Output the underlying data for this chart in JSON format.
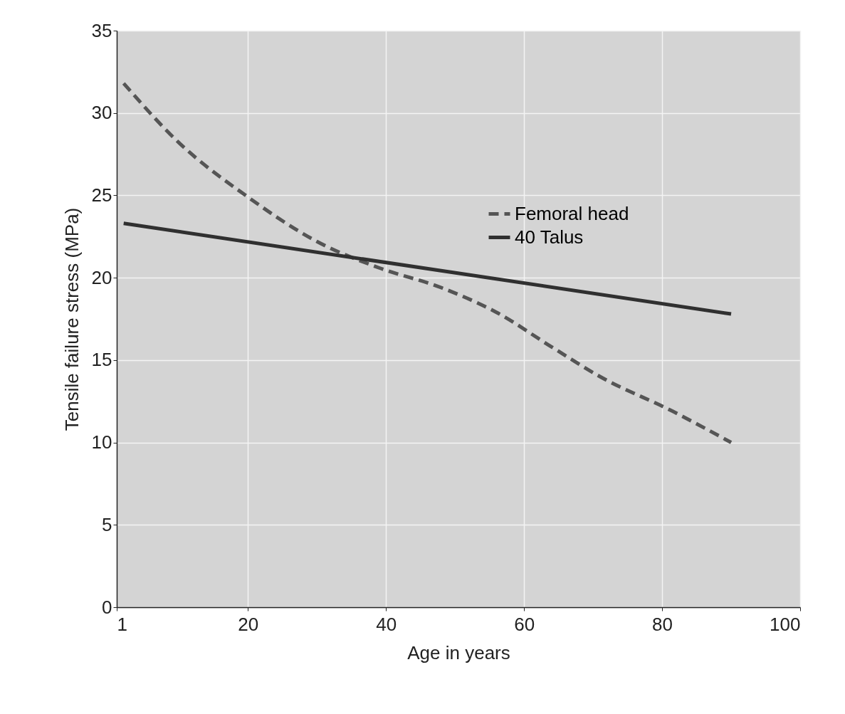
{
  "chart_data": {
    "type": "line",
    "xlabel": "Age in years",
    "ylabel": "Tensile failure stress (MPa)",
    "xlim": [
      1,
      100
    ],
    "xticks": [
      1,
      20,
      40,
      60,
      80,
      100
    ],
    "ylim": [
      0,
      35
    ],
    "yticks": [
      0,
      5,
      10,
      15,
      20,
      25,
      30,
      35
    ],
    "grid": true,
    "legend": "top right",
    "marker": "none",
    "series": [
      {
        "name": "Femoral head",
        "color": "#555555",
        "line_style": "dashed",
        "x": [
          2,
          10,
          20,
          30,
          39,
          48,
          56,
          64,
          71,
          81.5,
          90
        ],
        "values": [
          31.8,
          28.2,
          24.9,
          22.2,
          20.6,
          19.4,
          17.9,
          15.8,
          14.0,
          11.9,
          10.0
        ]
      },
      {
        "name": "40 Talus",
        "color": "#303030",
        "line_style": "solid",
        "x": [
          2,
          90
        ],
        "values": [
          23.3,
          17.8
        ]
      }
    ]
  }
}
